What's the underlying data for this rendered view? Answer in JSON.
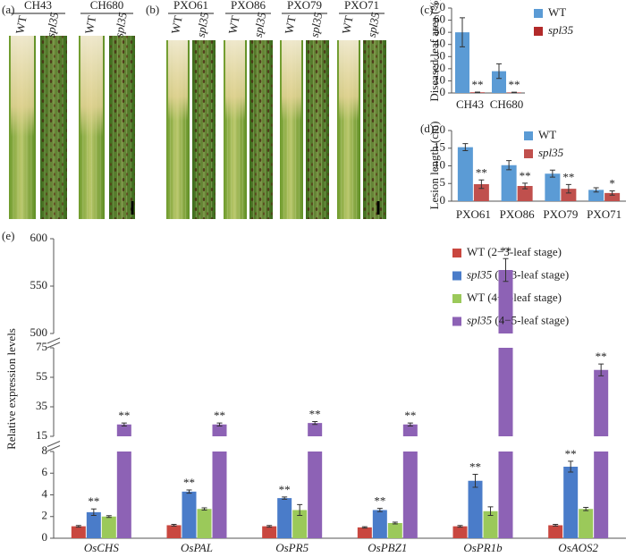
{
  "photo_panels": [
    {
      "label": "(a)",
      "groups": [
        {
          "name": "CH43",
          "lanes": [
            "WT",
            "spl35"
          ]
        },
        {
          "name": "CH680",
          "lanes": [
            "WT",
            "spl35"
          ]
        }
      ]
    },
    {
      "label": "(b)",
      "groups": [
        {
          "name": "PXO61",
          "lanes": [
            "WT",
            "spl35"
          ]
        },
        {
          "name": "PXO86",
          "lanes": [
            "WT",
            "spl35"
          ]
        },
        {
          "name": "PXO79",
          "lanes": [
            "WT",
            "spl35"
          ]
        },
        {
          "name": "PXO71",
          "lanes": [
            "WT",
            "spl35"
          ]
        }
      ]
    }
  ],
  "chart_data": [
    {
      "type": "bar",
      "panel_label": "(c)",
      "ylabel": "Diseased leaf area (%)",
      "categories": [
        "CH43",
        "CH680"
      ],
      "series": [
        {
          "name": "WT",
          "color": "#5b9bd5",
          "values": [
            50,
            18
          ],
          "errors": [
            12,
            6
          ]
        },
        {
          "name": "spl35",
          "color": "#b22a2a",
          "values": [
            0.5,
            0.4
          ],
          "errors": [
            0.2,
            0.2
          ],
          "annotations": [
            "**",
            "**"
          ]
        }
      ],
      "ylim": [
        0,
        70
      ],
      "yticks": [
        0,
        10,
        20,
        30,
        40,
        50,
        60,
        70
      ],
      "legend": "upper right"
    },
    {
      "type": "bar",
      "panel_label": "(d)",
      "ylabel": "Lesion length (cm)",
      "categories": [
        "PXO61",
        "PXO86",
        "PXO79",
        "PXO71"
      ],
      "series": [
        {
          "name": "WT",
          "color": "#5b9bd5",
          "values": [
            15.3,
            10.2,
            7.8,
            3.2
          ],
          "errors": [
            1.0,
            1.3,
            1.0,
            0.6
          ]
        },
        {
          "name": "spl35",
          "color": "#c0504d",
          "values": [
            4.8,
            4.3,
            3.5,
            2.3
          ],
          "errors": [
            1.2,
            0.8,
            1.2,
            0.6
          ],
          "annotations": [
            "**",
            "**",
            "**",
            "*"
          ]
        }
      ],
      "ylim": [
        0,
        20
      ],
      "yticks": [
        0,
        5,
        10,
        15,
        20
      ],
      "legend": "upper right"
    },
    {
      "type": "broken_bar",
      "panel_label": "(e)",
      "ylabel": "Relative expression levels",
      "categories": [
        "OsCHS",
        "OsPAL",
        "OsPR5",
        "OsPBZ1",
        "OsPR1b",
        "OsAOS2"
      ],
      "series": [
        {
          "name": "WT (2−3-leaf stage)",
          "color": "#c9473f",
          "values": [
            1.1,
            1.2,
            1.1,
            1.0,
            1.1,
            1.2
          ],
          "errors": [
            0.08,
            0.08,
            0.08,
            0.06,
            0.08,
            0.08
          ]
        },
        {
          "name": "spl35 (2−3-leaf stage)",
          "color": "#4a7cc9",
          "values": [
            2.4,
            4.3,
            3.7,
            2.6,
            5.3,
            6.6
          ],
          "errors": [
            0.3,
            0.15,
            0.1,
            0.15,
            0.6,
            0.5
          ],
          "annotations": [
            "**",
            "**",
            "**",
            "**",
            "**",
            "**"
          ]
        },
        {
          "name": "WT (4−5-leaf stage)",
          "color": "#9bc95a",
          "values": [
            2.0,
            2.7,
            2.6,
            1.4,
            2.5,
            2.7
          ],
          "errors": [
            0.08,
            0.1,
            0.5,
            0.08,
            0.4,
            0.15
          ]
        },
        {
          "name": "spl35 (4−5-leaf stage)",
          "color": "#8d62b5",
          "values": [
            23,
            23,
            24,
            23,
            567,
            60
          ],
          "errors": [
            1,
            1,
            1,
            1,
            12,
            4
          ],
          "annotations": [
            "**",
            "**",
            "**",
            "**",
            "**",
            "**"
          ]
        }
      ],
      "axis_segments": [
        {
          "ylim": [
            0,
            8
          ],
          "yticks": [
            0,
            2,
            4,
            6,
            8
          ]
        },
        {
          "ylim": [
            15,
            75
          ],
          "yticks": [
            15,
            35,
            55,
            75
          ]
        },
        {
          "ylim": [
            500,
            600
          ],
          "yticks": [
            500,
            550,
            600
          ]
        }
      ],
      "legend": "upper right"
    }
  ]
}
